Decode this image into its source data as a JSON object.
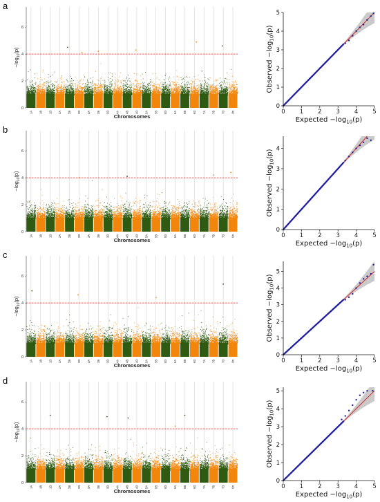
{
  "colors": {
    "chrom_even": "#2f5a12",
    "chrom_odd": "#f2860c",
    "threshold": "#d42020",
    "qq_points": "#1f1fa0",
    "qq_line": "#d42a2a",
    "ci_band": "#bdbdbd",
    "grid": "#c8c8c8"
  },
  "manhattan_text": {
    "xlabel": "Chromosomes",
    "ylabel_prefix": "−log",
    "ylabel_sub": "10",
    "ylabel_suffix": "(p)",
    "yticks": [
      "0",
      "2",
      "4",
      "6"
    ]
  },
  "qq_text": {
    "xlabel_prefix": "Expected  −log",
    "ylabel_prefix": "Observed  −log",
    "sub": "10",
    "suffix": "(p)",
    "xticks": [
      "0",
      "1",
      "2",
      "3",
      "4",
      "5"
    ]
  },
  "chart_data": [
    {
      "panel": "a",
      "type": "scatter",
      "subtype": "manhattan",
      "xlabel": "Chromosomes",
      "ylabel": "−log10(p)",
      "categories": [
        "1A",
        "1B",
        "1D",
        "2A",
        "2B",
        "2D",
        "3A",
        "3B",
        "3D",
        "4A",
        "4B",
        "4D",
        "5A",
        "5B",
        "5D",
        "6A",
        "6B",
        "6D",
        "7A",
        "7B",
        "7D",
        "Un"
      ],
      "ylim": [
        0,
        7.5
      ],
      "threshold": 4,
      "highlights": [
        {
          "chrom": "2B",
          "pos": 0.3,
          "y": 4.5
        },
        {
          "chrom": "2D",
          "pos": 0.8,
          "y": 4.1
        },
        {
          "chrom": "3B",
          "pos": 0.5,
          "y": 4.2
        },
        {
          "chrom": "4D",
          "pos": 0.4,
          "y": 4.3
        },
        {
          "chrom": "6D",
          "pos": 0.7,
          "y": 4.9
        },
        {
          "chrom": "7D",
          "pos": 0.4,
          "y": 4.6
        }
      ]
    },
    {
      "panel": "a",
      "type": "scatter",
      "subtype": "qq",
      "xlabel": "Expected −log10(p)",
      "ylabel": "Observed −log10(p)",
      "xlim": [
        0,
        5
      ],
      "ylim": [
        0,
        5
      ],
      "xticks": [
        0,
        1,
        2,
        3,
        4,
        5
      ],
      "yticks": [
        0,
        1,
        2,
        3,
        4,
        5
      ],
      "tail": [
        [
          3.4,
          3.35
        ],
        [
          3.6,
          3.5
        ],
        [
          3.8,
          3.75
        ],
        [
          4.0,
          4.0
        ],
        [
          4.2,
          4.2
        ],
        [
          4.4,
          4.35
        ],
        [
          4.6,
          4.6
        ],
        [
          4.8,
          4.8
        ],
        [
          4.95,
          4.95
        ]
      ]
    },
    {
      "panel": "b",
      "type": "scatter",
      "subtype": "manhattan",
      "xlabel": "Chromosomes",
      "ylabel": "−log10(p)",
      "categories": [
        "1A",
        "1B",
        "1D",
        "2A",
        "2B",
        "2D",
        "3A",
        "3B",
        "3D",
        "4A",
        "4B",
        "4D",
        "5A",
        "5B",
        "5D",
        "6A",
        "6B",
        "6D",
        "7A",
        "7B",
        "7D",
        "Un"
      ],
      "ylim": [
        0,
        7.5
      ],
      "threshold": 4,
      "highlights": [
        {
          "chrom": "2D",
          "pos": 0.5,
          "y": 4.0
        },
        {
          "chrom": "4B",
          "pos": 0.5,
          "y": 4.1
        },
        {
          "chrom": "7B",
          "pos": 0.5,
          "y": 4.2
        },
        {
          "chrom": "Un",
          "pos": 0.3,
          "y": 4.4
        }
      ]
    },
    {
      "panel": "b",
      "type": "scatter",
      "subtype": "qq",
      "xlabel": "Expected −log10(p)",
      "ylabel": "Observed −log10(p)",
      "xlim": [
        0,
        5
      ],
      "ylim": [
        0,
        4.6
      ],
      "xticks": [
        0,
        1,
        2,
        3,
        4,
        5
      ],
      "yticks": [
        0,
        1,
        2,
        3,
        4
      ],
      "tail": [
        [
          3.4,
          3.4
        ],
        [
          3.6,
          3.6
        ],
        [
          3.8,
          3.8
        ],
        [
          4.0,
          4.0
        ],
        [
          4.2,
          4.15
        ],
        [
          4.4,
          4.3
        ],
        [
          4.6,
          4.5
        ],
        [
          4.8,
          4.4
        ]
      ]
    },
    {
      "panel": "c",
      "type": "scatter",
      "subtype": "manhattan",
      "xlabel": "Chromosomes",
      "ylabel": "−log10(p)",
      "categories": [
        "1A",
        "1B",
        "1D",
        "2A",
        "2B",
        "2D",
        "3A",
        "3B",
        "3D",
        "4A",
        "4B",
        "4D",
        "5A",
        "5B",
        "5D",
        "6A",
        "6B",
        "6D",
        "7A",
        "7B",
        "7D",
        "Un"
      ],
      "ylim": [
        0,
        7.5
      ],
      "threshold": 4,
      "highlights": [
        {
          "chrom": "1A",
          "pos": 0.6,
          "y": 4.9
        },
        {
          "chrom": "2D",
          "pos": 0.4,
          "y": 4.6
        },
        {
          "chrom": "5B",
          "pos": 0.5,
          "y": 4.4
        },
        {
          "chrom": "7D",
          "pos": 0.5,
          "y": 5.4
        }
      ]
    },
    {
      "panel": "c",
      "type": "scatter",
      "subtype": "qq",
      "xlabel": "Expected −log10(p)",
      "ylabel": "Observed −log10(p)",
      "xlim": [
        0,
        5
      ],
      "ylim": [
        0,
        5.6
      ],
      "xticks": [
        0,
        1,
        2,
        3,
        4,
        5
      ],
      "yticks": [
        0,
        1,
        2,
        3,
        4,
        5
      ],
      "tail": [
        [
          3.4,
          3.3
        ],
        [
          3.6,
          3.45
        ],
        [
          3.8,
          3.65
        ],
        [
          4.0,
          4.0
        ],
        [
          4.2,
          4.3
        ],
        [
          4.4,
          4.55
        ],
        [
          4.6,
          4.7
        ],
        [
          4.8,
          4.85
        ],
        [
          4.95,
          5.4
        ]
      ]
    },
    {
      "panel": "d",
      "type": "scatter",
      "subtype": "manhattan",
      "xlabel": "Chromosomes",
      "ylabel": "−log10(p)",
      "categories": [
        "1A",
        "1B",
        "1D",
        "2A",
        "2B",
        "2D",
        "3A",
        "3B",
        "3D",
        "4A",
        "4B",
        "4D",
        "5A",
        "5B",
        "5D",
        "6A",
        "6B",
        "6D",
        "7A",
        "7B",
        "7D",
        "Un"
      ],
      "ylim": [
        0,
        7.5
      ],
      "threshold": 4,
      "highlights": [
        {
          "chrom": "1D",
          "pos": 0.5,
          "y": 5.0
        },
        {
          "chrom": "3D",
          "pos": 0.4,
          "y": 4.9
        },
        {
          "chrom": "4B",
          "pos": 0.6,
          "y": 4.8
        },
        {
          "chrom": "6B",
          "pos": 0.5,
          "y": 5.0
        },
        {
          "chrom": "6A",
          "pos": 0.5,
          "y": 4.2
        }
      ]
    },
    {
      "panel": "d",
      "type": "scatter",
      "subtype": "qq",
      "xlabel": "Expected −log10(p)",
      "ylabel": "Observed −log10(p)",
      "xlim": [
        0,
        5
      ],
      "ylim": [
        0,
        5.2
      ],
      "xticks": [
        0,
        1,
        2,
        3,
        4,
        5
      ],
      "yticks": [
        0,
        1,
        2,
        3,
        4,
        5
      ],
      "tail": [
        [
          3.2,
          3.4
        ],
        [
          3.4,
          3.6
        ],
        [
          3.6,
          3.9
        ],
        [
          3.8,
          4.2
        ],
        [
          4.0,
          4.5
        ],
        [
          4.2,
          4.75
        ],
        [
          4.4,
          4.9
        ],
        [
          4.6,
          5.0
        ],
        [
          4.9,
          5.0
        ]
      ]
    }
  ]
}
